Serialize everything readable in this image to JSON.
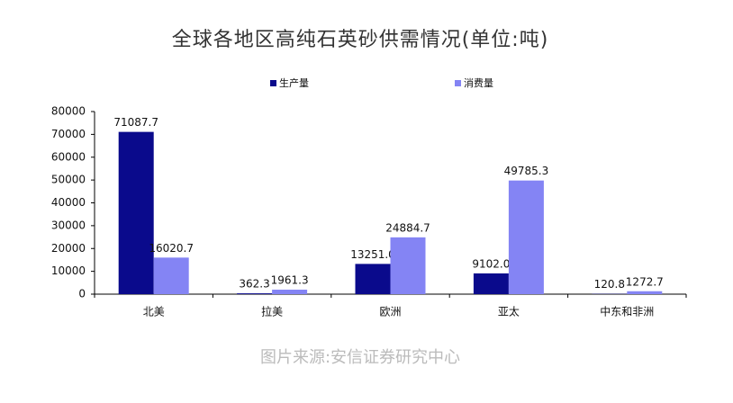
{
  "chart_data": {
    "type": "bar",
    "title": "全球各地区高纯石英砂供需情况(单位:吨)",
    "categories": [
      "北美",
      "拉美",
      "欧洲",
      "亚太",
      "中东和非洲"
    ],
    "series": [
      {
        "name": "生产量",
        "color": "#0a0a8c",
        "values": [
          71087.7,
          362.3,
          13251.0,
          9102.0,
          120.8
        ],
        "value_labels": [
          "71087.7",
          "362.3",
          "13251.0",
          "9102.0",
          "120.8"
        ]
      },
      {
        "name": "消费量",
        "color": "#8484f4",
        "values": [
          16020.7,
          1961.3,
          24884.7,
          49785.3,
          1272.7
        ],
        "value_labels": [
          "16020.7",
          "1961.3",
          "24884.7",
          "49785.3",
          "1272.7"
        ]
      }
    ],
    "ylim": [
      0,
      80000
    ],
    "yticks": [
      0,
      10000,
      20000,
      30000,
      40000,
      50000,
      60000,
      70000,
      80000
    ],
    "source": "图片来源:安信证券研究中心"
  }
}
